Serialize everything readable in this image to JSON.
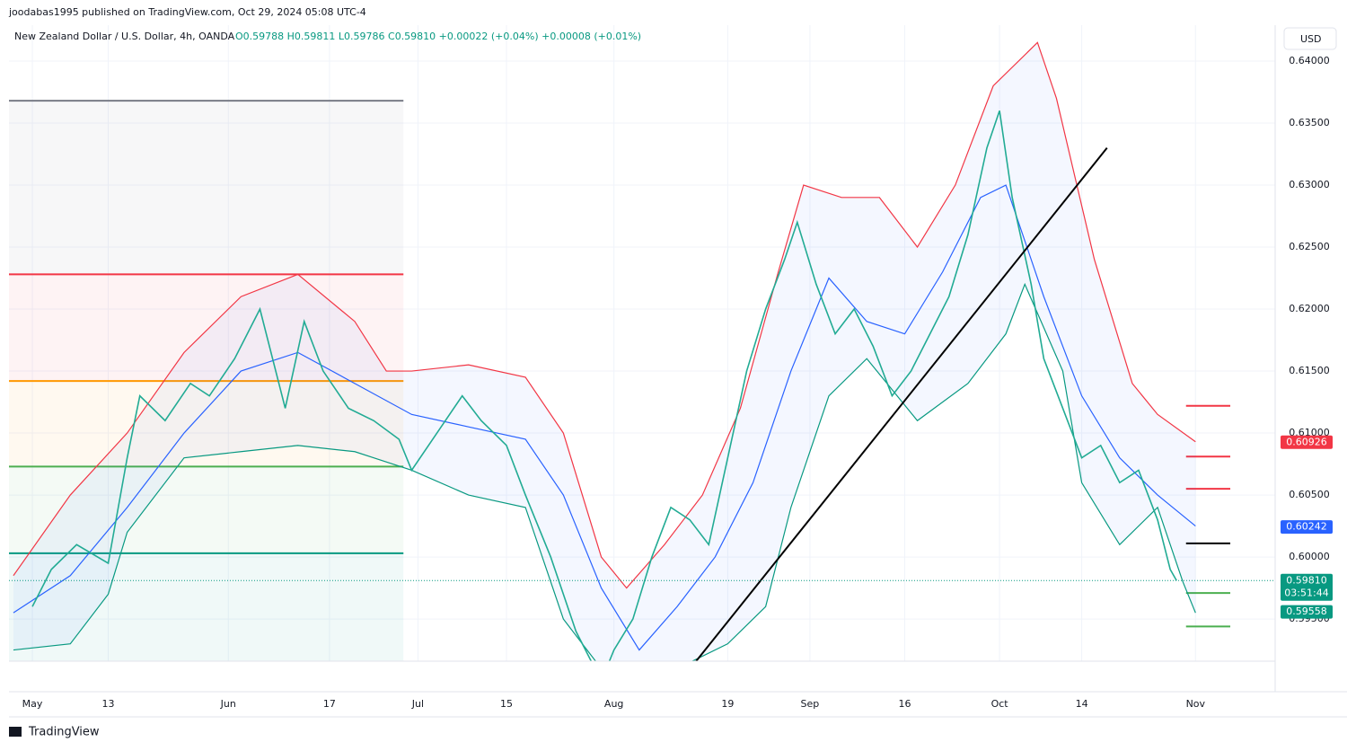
{
  "header": {
    "publisher": "joodabas1995 published on TradingView.com, Oct 29, 2024 05:08 UTC-4",
    "brand": "TradingView"
  },
  "chart_data": {
    "type": "line",
    "title": "New Zealand Dollar / U.S. Dollar, 4h, OANDA",
    "subtitle": "O0.59788 H0.59811 L0.59786 C0.59810 +0.00022 (+0.04%) +0.00008 (+0.01%)",
    "currency": "USD",
    "xlim": [
      -3.7,
      196.6
    ],
    "ylim": [
      0.5916,
      0.6429
    ],
    "xticks": [
      {
        "value": 0,
        "label": "May"
      },
      {
        "value": 12,
        "label": "13"
      },
      {
        "value": 31,
        "label": "Jun"
      },
      {
        "value": 47,
        "label": "17"
      },
      {
        "value": 61,
        "label": "Jul"
      },
      {
        "value": 75,
        "label": "15"
      },
      {
        "value": 92,
        "label": "Aug"
      },
      {
        "value": 110,
        "label": "19"
      },
      {
        "value": 123,
        "label": "Sep"
      },
      {
        "value": 138,
        "label": "16"
      },
      {
        "value": 153,
        "label": "Oct"
      },
      {
        "value": 166,
        "label": "14"
      },
      {
        "value": 184,
        "label": "Nov"
      }
    ],
    "yticks": [
      {
        "value": 0.595,
        "label": "0.59500"
      },
      {
        "value": 0.6,
        "label": "0.60000"
      },
      {
        "value": 0.605,
        "label": "0.60500"
      },
      {
        "value": 0.61,
        "label": "0.61000"
      },
      {
        "value": 0.615,
        "label": "0.61500"
      },
      {
        "value": 0.62,
        "label": "0.62000"
      },
      {
        "value": 0.625,
        "label": "0.62500"
      },
      {
        "value": 0.63,
        "label": "0.63000"
      },
      {
        "value": 0.635,
        "label": "0.63500"
      },
      {
        "value": 0.64,
        "label": "0.64000"
      }
    ],
    "grid": true,
    "series": [
      {
        "color": "#f23645",
        "x": [
          -3,
          6,
          15,
          24,
          33,
          42,
          51,
          56,
          60,
          69,
          78,
          84,
          90,
          94,
          100,
          106,
          112,
          118,
          122,
          128,
          134,
          140,
          146,
          152,
          159,
          162,
          168,
          174,
          178,
          184
        ],
        "values": [
          0.5985,
          0.605,
          0.61,
          0.6165,
          0.621,
          0.6228,
          0.619,
          0.615,
          0.615,
          0.6155,
          0.6145,
          0.61,
          0.6,
          0.5975,
          0.601,
          0.605,
          0.612,
          0.623,
          0.63,
          0.629,
          0.629,
          0.625,
          0.63,
          0.638,
          0.6415,
          0.637,
          0.624,
          0.614,
          0.6115,
          0.6093
        ]
      },
      {
        "color": "#2962ff",
        "x": [
          -3,
          6,
          15,
          24,
          33,
          42,
          51,
          60,
          69,
          78,
          84,
          90,
          96,
          102,
          108,
          114,
          120,
          126,
          132,
          138,
          144,
          150,
          154,
          160,
          166,
          172,
          178,
          184
        ],
        "values": [
          0.5955,
          0.5985,
          0.604,
          0.61,
          0.615,
          0.6165,
          0.614,
          0.6115,
          0.6105,
          0.6095,
          0.605,
          0.5975,
          0.5925,
          0.596,
          0.6,
          0.606,
          0.615,
          0.6225,
          0.619,
          0.618,
          0.623,
          0.629,
          0.63,
          0.621,
          0.613,
          0.608,
          0.605,
          0.6025
        ]
      },
      {
        "color": "#089981",
        "x": [
          -3,
          6,
          12,
          15,
          24,
          33,
          42,
          51,
          60,
          69,
          78,
          84,
          90,
          102,
          110,
          116,
          120,
          126,
          132,
          140,
          148,
          154,
          157,
          163,
          166,
          172,
          178,
          182,
          184
        ],
        "values": [
          0.5925,
          0.593,
          0.597,
          0.602,
          0.608,
          0.6085,
          0.609,
          0.6085,
          0.607,
          0.605,
          0.604,
          0.595,
          0.591,
          0.591,
          0.593,
          0.596,
          0.604,
          0.613,
          0.616,
          0.611,
          0.614,
          0.618,
          0.622,
          0.615,
          0.606,
          0.601,
          0.604,
          0.598,
          0.5955
        ]
      },
      {
        "color": "#22ab94",
        "x": [
          0,
          3,
          7,
          12,
          15,
          17,
          21,
          25,
          28,
          32,
          36,
          40,
          43,
          46,
          50,
          54,
          58,
          60,
          64,
          68,
          71,
          75,
          78,
          82,
          86,
          90,
          92,
          95,
          98,
          101,
          104,
          107,
          110,
          113,
          116,
          119,
          121,
          124,
          127,
          130,
          133,
          136,
          139,
          142,
          145,
          148,
          151,
          153,
          155,
          158,
          160,
          163,
          166,
          169,
          172,
          175,
          178,
          180,
          181
        ],
        "values": [
          0.596,
          0.599,
          0.601,
          0.5995,
          0.608,
          0.613,
          0.611,
          0.614,
          0.613,
          0.616,
          0.62,
          0.612,
          0.619,
          0.615,
          0.612,
          0.611,
          0.6095,
          0.607,
          0.61,
          0.613,
          0.611,
          0.609,
          0.605,
          0.6,
          0.594,
          0.59,
          0.5925,
          0.595,
          0.6,
          0.604,
          0.603,
          0.601,
          0.608,
          0.615,
          0.62,
          0.624,
          0.627,
          0.622,
          0.618,
          0.62,
          0.617,
          0.613,
          0.615,
          0.618,
          0.621,
          0.626,
          0.633,
          0.636,
          0.629,
          0.622,
          0.616,
          0.612,
          0.608,
          0.609,
          0.606,
          0.607,
          0.603,
          0.599,
          0.5981
        ]
      }
    ],
    "levels": [
      {
        "value": 0.6368,
        "color": "#787b86",
        "x": [
          -3.7,
          58.7
        ]
      },
      {
        "value": 0.6228,
        "color": "#f23645",
        "x": [
          -3.7,
          58.7
        ]
      },
      {
        "value": 0.6142,
        "color": "#ff9800",
        "x": [
          -3.7,
          58.7
        ]
      },
      {
        "value": 0.6073,
        "color": "#4caf50",
        "x": [
          -3.7,
          58.7
        ]
      },
      {
        "value": 0.6003,
        "color": "#089981",
        "x": [
          -3.7,
          58.7
        ]
      },
      {
        "value": 0.6122,
        "color": "#f23645",
        "x": [
          182.5,
          189.5
        ]
      },
      {
        "value": 0.6081,
        "color": "#f23645",
        "x": [
          182.5,
          189.5
        ]
      },
      {
        "value": 0.6055,
        "color": "#f23645",
        "x": [
          182.5,
          189.5
        ]
      },
      {
        "value": 0.6011,
        "color": "#000000",
        "x": [
          182.5,
          189.5
        ]
      },
      {
        "value": 0.5971,
        "color": "#4caf50",
        "x": [
          182.5,
          189.5
        ]
      },
      {
        "value": 0.5944,
        "color": "#4caf50",
        "x": [
          182.5,
          189.5
        ]
      }
    ],
    "trendline": {
      "x": [
        105,
        170
      ],
      "values": [
        0.5916,
        0.633
      ]
    },
    "last_price": 0.5981,
    "price_labels": [
      {
        "value": 0.60926,
        "label": "0.60926",
        "color": "#f23645"
      },
      {
        "value": 0.60242,
        "label": "0.60242",
        "color": "#2962ff"
      },
      {
        "value": 0.5981,
        "label": "0.59810",
        "color": "#089981",
        "countdown": "03:51:44"
      },
      {
        "value": 0.59558,
        "label": "0.59558",
        "color": "#089981"
      }
    ]
  }
}
